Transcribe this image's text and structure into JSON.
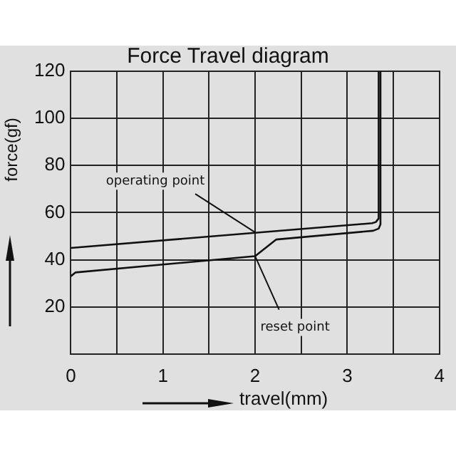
{
  "chart_data": {
    "type": "line",
    "title": "Force Travel diagram",
    "xlabel": "travel(mm)",
    "ylabel": "force(gf)",
    "xlim": [
      0,
      4
    ],
    "xticks": [
      0,
      {
        "value": 0.5,
        "label": null
      },
      1,
      {
        "value": 1.5,
        "label": null
      },
      2,
      {
        "value": 2.5,
        "label": null
      },
      3,
      {
        "value": 3.5,
        "label": null
      },
      4
    ],
    "ylim": [
      0,
      120
    ],
    "yticks": [
      20,
      40,
      60,
      80,
      100,
      120
    ],
    "grid": true,
    "legend": false,
    "marker": "none",
    "line_style": "solid",
    "series": [
      {
        "color": "#111111",
        "x": [
          0,
          3.27,
          3.31,
          3.34,
          3.34
        ],
        "values": [
          45,
          55.5,
          56,
          57.5,
          120
        ]
      },
      {
        "color": "#111111",
        "x": [
          0,
          0.05,
          2,
          2.23,
          3.28,
          3.34,
          3.36,
          3.36
        ],
        "values": [
          33,
          34.6,
          41.5,
          48.6,
          52.3,
          53.2,
          55,
          120
        ]
      }
    ],
    "annotations": [
      {
        "text": "operating point",
        "x": 2,
        "y": 51.6
      },
      {
        "text": "reset point",
        "x": 2,
        "y": 41.5
      }
    ]
  }
}
